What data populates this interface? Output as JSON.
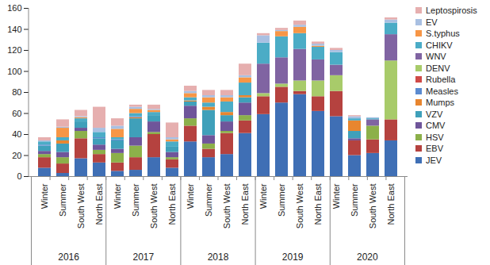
{
  "chart_data": {
    "type": "bar",
    "stacked": true,
    "grid": false,
    "legend": "right",
    "categories": [
      "Winter",
      "Summer",
      "South West",
      "North East",
      "Winter",
      "Summer",
      "South West",
      "North East",
      "Winter",
      "Summer",
      "South West",
      "North East",
      "Winter",
      "Summer",
      "South West",
      "North East",
      "Winter",
      "Summer",
      "South West",
      "North East"
    ],
    "groups": [
      {
        "label": "2016",
        "size": 4
      },
      {
        "label": "2017",
        "size": 4
      },
      {
        "label": "2018",
        "size": 4
      },
      {
        "label": "2019",
        "size": 4
      },
      {
        "label": "2020",
        "size": 4
      }
    ],
    "ylim": [
      0,
      160
    ],
    "yticks": [
      0,
      20,
      40,
      60,
      80,
      100,
      120,
      140,
      160
    ],
    "series": [
      {
        "name": "JEV",
        "color": "#3f6fb5",
        "values": [
          8,
          3,
          17,
          13,
          5,
          6,
          18,
          8,
          33,
          18,
          21,
          41,
          59,
          70,
          78,
          62,
          57,
          20,
          22,
          34
        ]
      },
      {
        "name": "EBV",
        "color": "#b5423f",
        "values": [
          10,
          9,
          19,
          8,
          8,
          12,
          22,
          8,
          15,
          8,
          20,
          12,
          17,
          15,
          3,
          14,
          24,
          14,
          13,
          20
        ]
      },
      {
        "name": "HSV",
        "color": "#8cb04a",
        "values": [
          3,
          6,
          7,
          4,
          9,
          11,
          2,
          2,
          7,
          5,
          2,
          5,
          0,
          0,
          0,
          0,
          0,
          0,
          13,
          0
        ]
      },
      {
        "name": "CMV",
        "color": "#6f559a",
        "values": [
          3,
          5,
          3,
          5,
          4,
          8,
          10,
          5,
          12,
          8,
          9,
          12,
          0,
          0,
          0,
          0,
          0,
          2,
          0,
          0
        ]
      },
      {
        "name": "VZV",
        "color": "#3fa0ba",
        "values": [
          5,
          8,
          6,
          6,
          8,
          18,
          6,
          5,
          4,
          24,
          6,
          5,
          0,
          0,
          0,
          0,
          0,
          7,
          0,
          0
        ]
      },
      {
        "name": "Mumps",
        "color": "#e8862f",
        "values": [
          0,
          3,
          0,
          0,
          0,
          1,
          0,
          0,
          1,
          3,
          3,
          2,
          0,
          0,
          0,
          0,
          0,
          10,
          0,
          0
        ]
      },
      {
        "name": "Measles",
        "color": "#5b8bd0",
        "values": [
          1,
          0,
          0,
          1,
          1,
          1,
          0,
          0,
          0,
          0,
          0,
          0,
          0,
          0,
          0,
          0,
          0,
          0,
          0,
          0
        ]
      },
      {
        "name": "Rubella",
        "color": "#d04a47",
        "values": [
          0,
          0,
          0,
          0,
          0,
          0,
          0,
          0,
          0,
          0,
          0,
          0,
          0,
          0,
          0,
          0,
          0,
          0,
          0,
          0
        ]
      },
      {
        "name": "DENV",
        "color": "#a8cb6a",
        "values": [
          0,
          0,
          0,
          0,
          0,
          0,
          0,
          0,
          0,
          0,
          0,
          0,
          3,
          3,
          10,
          15,
          15,
          0,
          0,
          56
        ]
      },
      {
        "name": "WNV",
        "color": "#8064a2",
        "values": [
          0,
          0,
          0,
          0,
          0,
          0,
          0,
          0,
          0,
          0,
          0,
          0,
          28,
          25,
          30,
          20,
          10,
          0,
          6,
          25
        ]
      },
      {
        "name": "CHIKV",
        "color": "#4bacc6",
        "values": [
          3,
          3,
          3,
          5,
          2,
          3,
          3,
          5,
          3,
          4,
          10,
          12,
          20,
          20,
          15,
          12,
          12,
          2,
          1,
          11
        ]
      },
      {
        "name": "S.typhus",
        "color": "#f79646",
        "values": [
          0,
          9,
          1,
          0,
          8,
          4,
          2,
          2,
          4,
          5,
          4,
          5,
          0,
          5,
          6,
          1,
          0,
          0,
          0,
          0
        ]
      },
      {
        "name": "EV",
        "color": "#a9c0e2",
        "values": [
          1,
          1,
          1,
          4,
          3,
          2,
          1,
          2,
          2,
          2,
          2,
          2,
          7,
          1,
          2,
          2,
          2,
          2,
          1,
          3
        ]
      },
      {
        "name": "Leptospirosis",
        "color": "#e6afaf",
        "values": [
          3,
          7,
          6,
          20,
          7,
          2,
          4,
          14,
          5,
          5,
          5,
          11,
          2,
          2,
          4,
          2,
          2,
          1,
          0,
          2
        ]
      }
    ]
  }
}
